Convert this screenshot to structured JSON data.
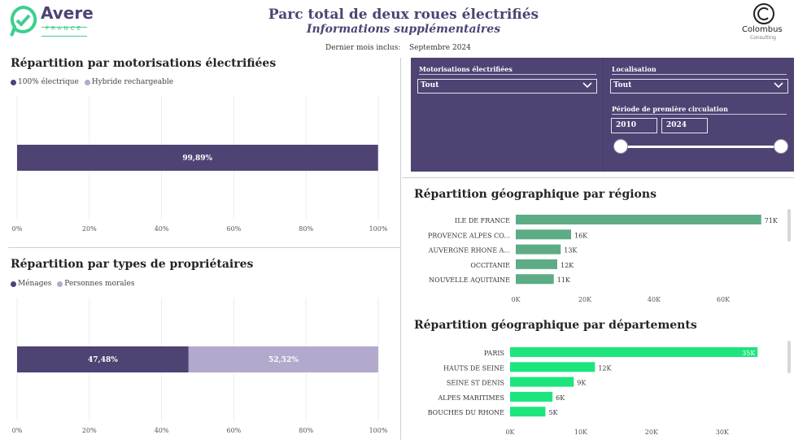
{
  "header": {
    "title": "Parc total de deux roues électrifiés",
    "subtitle": "Informations supplémentaires",
    "last_month_label": "Dernier mois inclus:",
    "last_month_value": "Septembre 2024",
    "logo_left": "Avere",
    "logo_left_sub": "FRANCE",
    "logo_right": "Colombus",
    "logo_right_sub": "Consulting"
  },
  "colors": {
    "purple": "#4e4373",
    "lavender": "#b3a9cc",
    "region_green": "#5eac86",
    "dept_green": "#1de57e"
  },
  "filters": {
    "motorisation_label": "Motorisations électrifiées",
    "motorisation_value": "Tout",
    "localisation_label": "Localisation",
    "localisation_value": "Tout",
    "period_label": "Période de première circulation",
    "period_start": "2010",
    "period_end": "2024"
  },
  "chart_data": [
    {
      "id": "motorisations",
      "type": "bar",
      "orientation": "horizontal-stacked-100",
      "title": "Répartition par motorisations électrifiées",
      "legend": [
        "100% électrique",
        "Hybride rechargeable"
      ],
      "series": [
        {
          "name": "100% électrique",
          "values": [
            99.89
          ],
          "label": "99,89%",
          "color": "#4e4373"
        },
        {
          "name": "Hybride rechargeable",
          "values": [
            0.11
          ],
          "label": "",
          "color": "#b3a9cc"
        }
      ],
      "xticks": [
        "0%",
        "20%",
        "40%",
        "60%",
        "80%",
        "100%"
      ],
      "xlim": [
        0,
        100
      ]
    },
    {
      "id": "proprietaires",
      "type": "bar",
      "orientation": "horizontal-stacked-100",
      "title": "Répartition par types de propriétaires",
      "legend": [
        "Ménages",
        "Personnes morales"
      ],
      "series": [
        {
          "name": "Ménages",
          "values": [
            47.48
          ],
          "label": "47,48%",
          "color": "#4e4373"
        },
        {
          "name": "Personnes morales",
          "values": [
            52.52
          ],
          "label": "52,52%",
          "color": "#b3a9cc"
        }
      ],
      "xticks": [
        "0%",
        "20%",
        "40%",
        "60%",
        "80%",
        "100%"
      ],
      "xlim": [
        0,
        100
      ]
    },
    {
      "id": "regions",
      "type": "bar",
      "orientation": "horizontal",
      "title": "Répartition géographique par régions",
      "categories": [
        "ILE DE FRANCE",
        "PROVENCE ALPES CO...",
        "AUVERGNE RHONE A...",
        "OCCITANIE",
        "NOUVELLE AQUITAINE"
      ],
      "values": [
        71000,
        16000,
        13000,
        12000,
        11000
      ],
      "labels": [
        "71K",
        "16K",
        "13K",
        "12K",
        "11K"
      ],
      "xticks": [
        "0K",
        "20K",
        "40K",
        "60K"
      ],
      "xlim": [
        0,
        72000
      ]
    },
    {
      "id": "departements",
      "type": "bar",
      "orientation": "horizontal",
      "title": "Répartition géographique par départements",
      "categories": [
        "PARIS",
        "HAUTS DE SEINE",
        "SEINE ST DENIS",
        "ALPES MARITIMES",
        "BOUCHES DU RHONE"
      ],
      "values": [
        35000,
        12000,
        9000,
        6000,
        5000
      ],
      "labels": [
        "35K",
        "12K",
        "9K",
        "6K",
        "5K"
      ],
      "xticks": [
        "0K",
        "10K",
        "20K",
        "30K"
      ],
      "xlim": [
        0,
        36000
      ]
    }
  ]
}
